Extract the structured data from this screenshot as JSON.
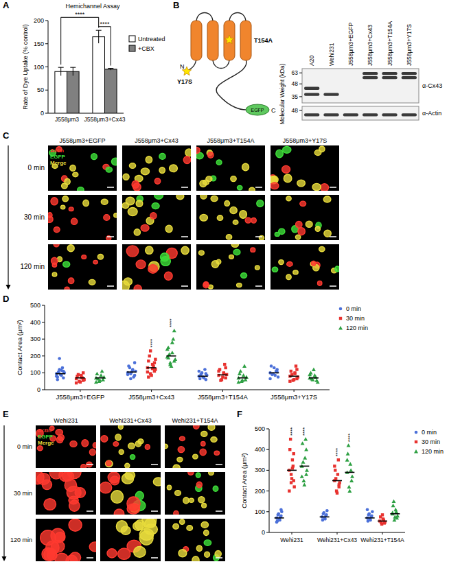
{
  "chart_data": [
    {
      "type": "bar",
      "title": "Hemichannel Assay",
      "y_label": "Rate of Dye Uptake (% control)",
      "categories": [
        "J558μm3",
        "J558μm3+Cx43"
      ],
      "series": [
        {
          "name": "Untreated",
          "color": "#ffffff",
          "values": [
            90,
            165
          ],
          "errors": [
            9,
            14
          ]
        },
        {
          "name": "+CBX",
          "color": "#808080",
          "values": [
            90,
            95
          ],
          "errors": [
            9,
            2
          ]
        }
      ],
      "ylim": [
        0,
        200
      ],
      "yticks": [
        0,
        50,
        100,
        150,
        200
      ],
      "legend": "right",
      "annotations": [
        {
          "text": "****",
          "bars": [
            [
              0,
              0
            ],
            [
              1,
              0
            ]
          ]
        },
        {
          "text": "****",
          "bars": [
            [
              1,
              0
            ],
            [
              1,
              1
            ]
          ]
        }
      ]
    },
    {
      "type": "strip",
      "y_label": "Contact Area (μm²)",
      "categories": [
        "J558μm3+EGFP",
        "J558μm3+Cx43",
        "J558μm3+T154A",
        "J558μm3+Y17S"
      ],
      "series": [
        {
          "name": "0 min",
          "color": "#4b70d9",
          "marker": "circle",
          "values": [
            [
              95,
              110,
              85,
              120,
              75,
              100,
              130,
              90,
              105,
              80,
              70,
              115,
              185,
              60
            ],
            [
              100,
              85,
              120,
              95,
              140,
              110,
              75,
              105,
              130,
              90,
              160,
              115,
              65
            ],
            [
              80,
              95,
              70,
              100,
              65,
              85,
              120,
              75,
              90,
              110,
              60
            ],
            [
              100,
              120,
              85,
              95,
              140,
              75,
              110,
              130,
              90,
              65,
              105
            ]
          ],
          "medians": [
            95,
            105,
            80,
            100
          ]
        },
        {
          "name": "30 min",
          "color": "#e8322f",
          "marker": "square",
          "values": [
            [
              65,
              55,
              75,
              50,
              80,
              60,
              70,
              45,
              90,
              40,
              100,
              85
            ],
            [
              130,
              110,
              150,
              95,
              170,
              120,
              140,
              85,
              200,
              105,
              160,
              125,
              230,
              75,
              180
            ],
            [
              85,
              70,
              100,
              60,
              120,
              90,
              150,
              75,
              55,
              110,
              130,
              95
            ],
            [
              80,
              65,
              95,
              55,
              110,
              75,
              140,
              60,
              90,
              50,
              120,
              100
            ]
          ],
          "medians": [
            70,
            130,
            88,
            80
          ]
        },
        {
          "name": "120 min",
          "color": "#2ea043",
          "marker": "triangle",
          "values": [
            [
              70,
              60,
              85,
              50,
              95,
              75,
              110,
              55,
              65,
              45
            ],
            [
              195,
              170,
              220,
              150,
              250,
              180,
              300,
              140,
              210,
              240,
              350,
              280,
              160,
              190
            ],
            [
              70,
              60,
              85,
              50,
              95,
              75,
              140,
              55,
              110,
              45
            ],
            [
              70,
              55,
              85,
              60,
              100,
              45,
              75,
              120,
              65,
              90
            ]
          ],
          "medians": [
            70,
            200,
            70,
            70
          ]
        }
      ],
      "ylim": [
        0,
        500
      ],
      "yticks": [
        0,
        100,
        200,
        300,
        400,
        500
      ],
      "legend": "right",
      "annotations": [
        {
          "text": "****",
          "category": 1,
          "series": 1
        },
        {
          "text": "****",
          "category": 1,
          "series": 2
        }
      ]
    },
    {
      "type": "strip",
      "y_label": "Contact Area (μm²)",
      "categories": [
        "Wehi231",
        "Wehi231+Cx43",
        "Wehi231+T154A"
      ],
      "series": [
        {
          "name": "0 min",
          "color": "#4b70d9",
          "marker": "circle",
          "values": [
            [
              70,
              80,
              60,
              90,
              55,
              100,
              75,
              65,
              85,
              50,
              110
            ],
            [
              75,
              85,
              65,
              95,
              60,
              105,
              80,
              70,
              90
            ],
            [
              70,
              80,
              60,
              90,
              55,
              100,
              75,
              65,
              85,
              110
            ]
          ],
          "medians": [
            70,
            75,
            70
          ]
        },
        {
          "name": "30 min",
          "color": "#e8322f",
          "marker": "square",
          "values": [
            [
              300,
              250,
              350,
              280,
              400,
              220,
              320,
              260,
              450,
              200,
              380,
              310,
              240
            ],
            [
              250,
              220,
              280,
              200,
              300,
              240,
              350,
              190,
              260,
              320,
              230
            ],
            [
              55,
              45,
              65,
              40,
              75,
              50,
              60,
              85,
              48
            ]
          ],
          "medians": [
            300,
            250,
            55
          ]
        },
        {
          "name": "120 min",
          "color": "#2ea043",
          "marker": "triangle",
          "values": [
            [
              320,
              280,
              360,
              250,
              430,
              300,
              450,
              230,
              340,
              270,
              400
            ],
            [
              290,
              250,
              330,
              220,
              380,
              270,
              300,
              200,
              420,
              350
            ],
            [
              90,
              70,
              110,
              60,
              130,
              80,
              100,
              75,
              150,
              95
            ]
          ],
          "medians": [
            320,
            290,
            90
          ]
        }
      ],
      "ylim": [
        0,
        500
      ],
      "yticks": [
        0,
        100,
        200,
        300,
        400,
        500
      ],
      "legend": "right",
      "annotations": [
        {
          "text": "****",
          "category": 0,
          "series": 1
        },
        {
          "text": "****",
          "category": 0,
          "series": 2
        },
        {
          "text": "****",
          "category": 1,
          "series": 1
        },
        {
          "text": "****",
          "category": 1,
          "series": 2
        }
      ]
    }
  ],
  "panel_labels": [
    "A",
    "B",
    "C",
    "D",
    "E",
    "F"
  ],
  "blot": {
    "topology": {
      "n_term": "N",
      "c_term": "C",
      "tag": "EGFP",
      "mutations": [
        "Y17S",
        "T154A"
      ]
    },
    "lanes": [
      "A20",
      "Wehi231",
      "J558μm3+EGFP",
      "J558μm3+Cx43",
      "J558μm3+T154A",
      "J558μm3+Y17S"
    ],
    "y_label": "Molecular Weight (kDa)",
    "top": {
      "antibody": "α-Cx43",
      "ylim": [
        30,
        70
      ],
      "markers": [
        63,
        48,
        35
      ],
      "bands": [
        [
          43,
          37
        ],
        [
          37
        ],
        [],
        [
          62,
          56
        ],
        [
          62,
          56
        ],
        [
          62,
          56
        ]
      ]
    },
    "bottom": {
      "antibody": "α-Actin",
      "ylim": [
        36,
        54
      ],
      "markers": [
        48
      ],
      "bands": [
        [
          42
        ],
        [
          42
        ],
        [
          42
        ],
        [
          42
        ],
        [
          42
        ],
        [
          42
        ]
      ]
    }
  },
  "micrographs": [
    {
      "columns": [
        "J558μm3+EGFP",
        "J558μm3+Cx43",
        "J558μm3+T154A",
        "J558μm3+Y17S"
      ],
      "rows": [
        "0 min",
        "30 min",
        "120 min"
      ],
      "channels": [
        "Actin",
        "EGFP",
        "Merge"
      ],
      "colors": [
        "#ff3a30",
        "#3ee03a",
        "#e8dc3c"
      ]
    },
    {
      "columns": [
        "Wehi231",
        "Wehi231+Cx43",
        "Wehi231+T154A"
      ],
      "rows": [
        "0 min",
        "30 min",
        "120 min"
      ],
      "channels": [
        "Actin",
        "EGFP",
        "Merge"
      ],
      "colors": [
        "#ff3a30",
        "#3ee03a",
        "#e8dc3c"
      ]
    }
  ]
}
